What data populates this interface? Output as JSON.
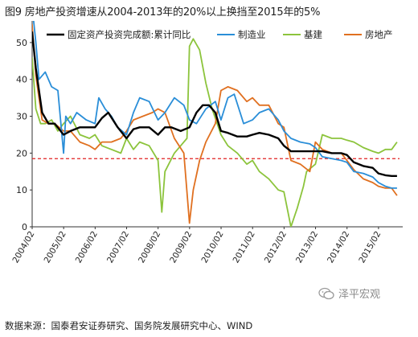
{
  "header": {
    "title": "图9 房地产投资增速从2004-2013年的20%以上换挡至2015年的5%"
  },
  "footer": {
    "source": "数据来源：国泰君安证券研究、国务院发展研究中心、WIND"
  },
  "watermark": {
    "text": "泽平宏观"
  },
  "chart_data": {
    "type": "line",
    "title": "图9 房地产投资增速从2004-2013年的20%以上换挡至2015年的5%",
    "xlabel": "",
    "ylabel": "",
    "ylim": [
      0,
      55
    ],
    "yticks": [
      0,
      10,
      20,
      30,
      40,
      50
    ],
    "xlim": [
      2004.083,
      2015.75
    ],
    "xtick_labels": [
      "2004/02",
      "2005/02",
      "2006/02",
      "2007/02",
      "2008/02",
      "2009/02",
      "2010/02",
      "2011/02",
      "2012/02",
      "2013/02",
      "2014/02",
      "2015/02"
    ],
    "grid": false,
    "legend_position": "top",
    "reference_line": {
      "y": 18.5,
      "style": "dashed",
      "color": "#e02020"
    },
    "series": [
      {
        "name": "固定资产投资完成额:累计同比",
        "color": "#000000",
        "x": [
          2004.08,
          2004.2,
          2004.4,
          2004.6,
          2004.8,
          2005.08,
          2005.3,
          2005.6,
          2005.9,
          2006.08,
          2006.3,
          2006.5,
          2006.8,
          2007.08,
          2007.3,
          2007.5,
          2007.8,
          2008.08,
          2008.3,
          2008.5,
          2008.8,
          2009.08,
          2009.3,
          2009.5,
          2009.7,
          2009.9,
          2010.08,
          2010.3,
          2010.6,
          2010.9,
          2011.08,
          2011.3,
          2011.6,
          2011.9,
          2012.08,
          2012.3,
          2012.6,
          2012.9,
          2013.08,
          2013.3,
          2013.6,
          2013.9,
          2014.08,
          2014.3,
          2014.6,
          2014.9,
          2015.08,
          2015.3,
          2015.5,
          2015.67
        ],
        "values": [
          53,
          43,
          31,
          28,
          28,
          25,
          26,
          27,
          27,
          27,
          29.5,
          31,
          27,
          24,
          26.5,
          27,
          27,
          25,
          27,
          27,
          26,
          27,
          31,
          33,
          33,
          31,
          26,
          25.5,
          24.5,
          24.5,
          25,
          25.5,
          25,
          24,
          22,
          20.5,
          20.5,
          20.5,
          20.5,
          20.5,
          20,
          20,
          19.5,
          17.5,
          16.5,
          16,
          14.5,
          14,
          13.8,
          13.8
        ]
      },
      {
        "name": "制造业",
        "color": "#2a8ed8",
        "x": [
          2004.08,
          2004.2,
          2004.3,
          2004.5,
          2004.7,
          2004.9,
          2005.08,
          2005.15,
          2005.3,
          2005.5,
          2005.8,
          2006.08,
          2006.2,
          2006.4,
          2006.6,
          2006.8,
          2007.08,
          2007.3,
          2007.5,
          2007.8,
          2008.08,
          2008.3,
          2008.6,
          2008.9,
          2009.08,
          2009.3,
          2009.6,
          2009.9,
          2010.08,
          2010.3,
          2010.5,
          2010.8,
          2011.08,
          2011.3,
          2011.6,
          2011.9,
          2012.08,
          2012.3,
          2012.6,
          2012.9,
          2013.08,
          2013.3,
          2013.6,
          2013.9,
          2014.08,
          2014.3,
          2014.6,
          2014.9,
          2015.08,
          2015.3,
          2015.5,
          2015.67
        ],
        "values": [
          60,
          50,
          40,
          42,
          38,
          37,
          20,
          30,
          28,
          31,
          29,
          28,
          35,
          32,
          30,
          27,
          25,
          31,
          35,
          34,
          29,
          31,
          35,
          33,
          29,
          28,
          32,
          34,
          29,
          35,
          36,
          28,
          29,
          31,
          32,
          29,
          26,
          24,
          23,
          22.5,
          21.5,
          19,
          18.5,
          18,
          17.5,
          15,
          14.5,
          13.5,
          12,
          11,
          10.5,
          10.5
        ]
      },
      {
        "name": "基建",
        "color": "#8cc43c",
        "x": [
          2004.08,
          2004.2,
          2004.35,
          2004.5,
          2004.7,
          2004.9,
          2005.08,
          2005.3,
          2005.6,
          2005.9,
          2006.08,
          2006.3,
          2006.6,
          2006.9,
          2007.08,
          2007.3,
          2007.5,
          2007.8,
          2008.08,
          2008.2,
          2008.3,
          2008.6,
          2008.8,
          2009.0,
          2009.08,
          2009.2,
          2009.4,
          2009.6,
          2009.8,
          2010.08,
          2010.3,
          2010.6,
          2010.9,
          2011.08,
          2011.3,
          2011.6,
          2011.9,
          2012.08,
          2012.3,
          2012.5,
          2012.7,
          2012.8,
          2013.08,
          2013.3,
          2013.6,
          2013.9,
          2014.08,
          2014.3,
          2014.6,
          2014.9,
          2015.08,
          2015.3,
          2015.5,
          2015.67
        ],
        "values": [
          46,
          32,
          28,
          28,
          29,
          26,
          28,
          30,
          25,
          24,
          25,
          22,
          21,
          20,
          24,
          21,
          23,
          22,
          18,
          4,
          15,
          20,
          22,
          24,
          49,
          51,
          48,
          39,
          32,
          25,
          22,
          20,
          17,
          18,
          15,
          13,
          10,
          9.5,
          0,
          5,
          11,
          15,
          17,
          25,
          24,
          24,
          23.5,
          23,
          21.5,
          20.5,
          20,
          21,
          21,
          23
        ]
      },
      {
        "name": "房地产",
        "color": "#e07020",
        "x": [
          2004.08,
          2004.2,
          2004.4,
          2004.6,
          2004.8,
          2005.08,
          2005.3,
          2005.6,
          2005.9,
          2006.08,
          2006.3,
          2006.6,
          2006.9,
          2007.08,
          2007.3,
          2007.6,
          2007.9,
          2008.08,
          2008.3,
          2008.6,
          2008.9,
          2009.08,
          2009.2,
          2009.4,
          2009.6,
          2009.9,
          2010.08,
          2010.3,
          2010.6,
          2010.9,
          2011.08,
          2011.3,
          2011.6,
          2011.9,
          2012.08,
          2012.3,
          2012.6,
          2012.9,
          2013.08,
          2013.3,
          2013.6,
          2013.9,
          2014.08,
          2014.3,
          2014.6,
          2014.9,
          2015.08,
          2015.3,
          2015.5,
          2015.67
        ],
        "values": [
          55,
          41,
          29,
          28,
          28,
          26,
          26,
          23,
          22,
          21,
          23,
          23,
          24,
          26,
          29,
          30,
          31,
          32,
          31,
          24,
          20,
          1,
          10,
          18,
          23,
          28,
          37,
          38,
          37,
          34,
          35,
          33,
          33,
          28,
          27,
          18,
          17,
          15,
          23,
          21,
          20,
          20,
          18,
          15.5,
          13,
          12,
          11,
          10.5,
          10.5,
          8.5
        ]
      }
    ]
  }
}
